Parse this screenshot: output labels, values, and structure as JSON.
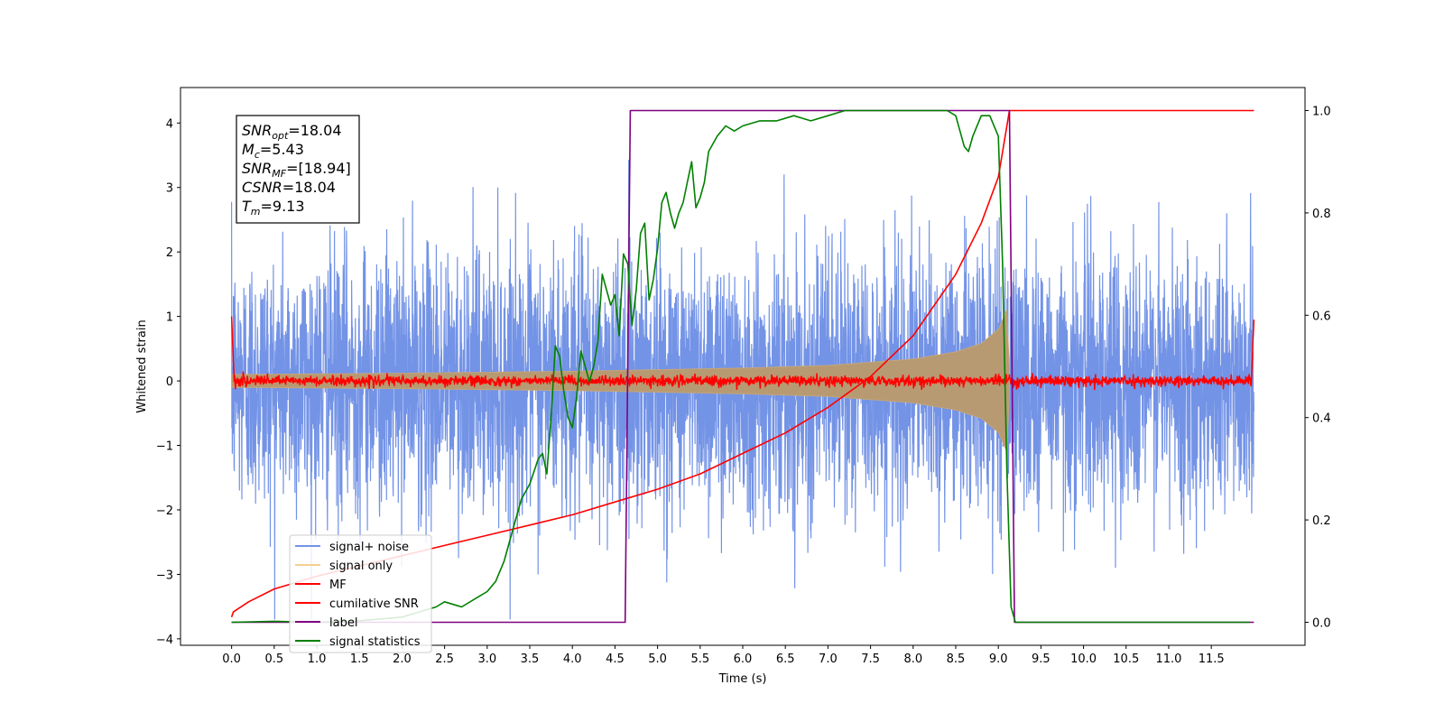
{
  "chart_data": {
    "type": "line",
    "title": "",
    "xlabel": "Time (s)",
    "ylabel": "Whitened strain",
    "xlim": [
      -0.6,
      12.6
    ],
    "ylim": [
      -4.1,
      4.55
    ],
    "y2lim": [
      -0.045,
      1.045
    ],
    "x_ticks": [
      0.0,
      0.5,
      1.0,
      1.5,
      2.0,
      2.5,
      3.0,
      3.5,
      4.0,
      4.5,
      5.0,
      5.5,
      6.0,
      6.5,
      7.0,
      7.5,
      8.0,
      8.5,
      9.0,
      9.5,
      10.0,
      10.5,
      11.0,
      11.5
    ],
    "x_tick_labels": [
      "0.0",
      "0.5",
      "1.0",
      "1.5",
      "2.0",
      "2.5",
      "3.0",
      "3.5",
      "4.0",
      "4.5",
      "5.0",
      "5.5",
      "6.0",
      "6.5",
      "7.0",
      "7.5",
      "8.0",
      "8.5",
      "9.0",
      "9.5",
      "10.0",
      "10.5",
      "11.0",
      "11.5"
    ],
    "y_ticks": [
      -4,
      -3,
      -2,
      -1,
      0,
      1,
      2,
      3,
      4
    ],
    "y_tick_labels": [
      "−4",
      "−3",
      "−2",
      "−1",
      "0",
      "1",
      "2",
      "3",
      "4"
    ],
    "y2_ticks": [
      0.0,
      0.2,
      0.4,
      0.6,
      0.8,
      1.0
    ],
    "y2_tick_labels": [
      "0.0",
      "0.2",
      "0.4",
      "0.6",
      "0.8",
      "1.0"
    ],
    "grid": false,
    "legend_position": "lower-left",
    "annotation": {
      "lines": [
        {
          "base": "SNR",
          "sub": "opt",
          "rest": "=18.04"
        },
        {
          "base": "M",
          "sub": "c",
          "rest": "=5.43"
        },
        {
          "base": "SNR",
          "sub": "MF",
          "rest": "=[18.94]"
        },
        {
          "base": "CSNR",
          "sub": "",
          "rest": "=18.04"
        },
        {
          "base": "T",
          "sub": "m",
          "rest": "=9.13"
        }
      ]
    },
    "series": [
      {
        "name": "signal+ noise",
        "color": "#7393e6",
        "axis": "left",
        "kind": "noise",
        "x_range": [
          0,
          12
        ],
        "amplitude_sigma": 1.0
      },
      {
        "name": "signal only",
        "color": "#f5c77e",
        "axis": "left",
        "kind": "chirp_envelope",
        "x_range": [
          0,
          9.13
        ],
        "envelope_x": [
          0,
          2,
          4,
          6,
          7,
          8,
          8.5,
          8.8,
          9.0,
          9.1,
          9.13
        ],
        "envelope_y": [
          0.1,
          0.12,
          0.15,
          0.2,
          0.24,
          0.34,
          0.45,
          0.58,
          0.8,
          1.1,
          0.2
        ]
      },
      {
        "name": "MF",
        "color": "#ff0000",
        "axis": "left",
        "kind": "mf_noise",
        "x_range": [
          0,
          12
        ],
        "amplitude_sigma": 0.04,
        "edge_values": [
          1.0,
          0.95
        ]
      },
      {
        "name": "cumilative SNR",
        "color": "#ff0000",
        "axis": "right",
        "x": [
          0,
          0.02,
          0.2,
          0.5,
          1.0,
          1.5,
          2.0,
          2.5,
          3.0,
          3.5,
          4.0,
          4.5,
          5.0,
          5.5,
          6.0,
          6.5,
          7.0,
          7.5,
          8.0,
          8.5,
          8.8,
          9.0,
          9.13,
          9.2,
          12.0
        ],
        "y": [
          0.01,
          0.02,
          0.04,
          0.065,
          0.09,
          0.11,
          0.13,
          0.15,
          0.17,
          0.19,
          0.21,
          0.235,
          0.26,
          0.29,
          0.33,
          0.37,
          0.42,
          0.48,
          0.56,
          0.68,
          0.78,
          0.87,
          1.0,
          1.0,
          1.0
        ]
      },
      {
        "name": "label",
        "color": "#800080",
        "axis": "right",
        "x": [
          0,
          4.62,
          4.68,
          9.13,
          9.19,
          12.0
        ],
        "y": [
          0.0,
          0.0,
          1.0,
          1.0,
          0.0,
          0.0
        ]
      },
      {
        "name": "signal statistics",
        "color": "#008000",
        "axis": "right",
        "x": [
          0.0,
          0.5,
          1.0,
          1.5,
          2.0,
          2.2,
          2.4,
          2.5,
          2.7,
          2.9,
          3.0,
          3.1,
          3.2,
          3.3,
          3.4,
          3.5,
          3.6,
          3.65,
          3.7,
          3.75,
          3.8,
          3.85,
          3.9,
          3.95,
          4.0,
          4.05,
          4.1,
          4.15,
          4.2,
          4.25,
          4.3,
          4.35,
          4.4,
          4.45,
          4.5,
          4.55,
          4.6,
          4.65,
          4.7,
          4.75,
          4.8,
          4.85,
          4.9,
          4.95,
          5.0,
          5.05,
          5.1,
          5.15,
          5.2,
          5.25,
          5.3,
          5.35,
          5.4,
          5.45,
          5.5,
          5.55,
          5.6,
          5.7,
          5.8,
          5.9,
          6.0,
          6.2,
          6.4,
          6.6,
          6.8,
          7.0,
          7.2,
          7.4,
          7.6,
          7.8,
          8.0,
          8.2,
          8.4,
          8.5,
          8.6,
          8.65,
          8.7,
          8.8,
          8.9,
          9.0,
          9.05,
          9.1,
          9.15,
          9.2,
          9.5,
          10.0,
          10.5,
          11.0,
          11.5,
          11.95
        ],
        "y": [
          0.0,
          0.002,
          0.0,
          0.003,
          0.01,
          0.02,
          0.03,
          0.04,
          0.03,
          0.05,
          0.06,
          0.08,
          0.12,
          0.18,
          0.24,
          0.27,
          0.32,
          0.33,
          0.29,
          0.4,
          0.54,
          0.52,
          0.45,
          0.4,
          0.38,
          0.44,
          0.53,
          0.5,
          0.47,
          0.5,
          0.55,
          0.68,
          0.65,
          0.62,
          0.64,
          0.56,
          0.72,
          0.7,
          0.58,
          0.65,
          0.76,
          0.78,
          0.63,
          0.67,
          0.73,
          0.82,
          0.84,
          0.8,
          0.77,
          0.8,
          0.82,
          0.86,
          0.9,
          0.81,
          0.83,
          0.86,
          0.92,
          0.95,
          0.97,
          0.96,
          0.97,
          0.98,
          0.98,
          0.99,
          0.98,
          0.99,
          1.0,
          1.0,
          1.0,
          1.0,
          1.0,
          1.0,
          1.0,
          0.99,
          0.93,
          0.92,
          0.95,
          0.99,
          0.99,
          0.95,
          0.7,
          0.3,
          0.03,
          0.0,
          0.0,
          0.0,
          0.0,
          0.0,
          0.0,
          0.0
        ]
      }
    ]
  }
}
